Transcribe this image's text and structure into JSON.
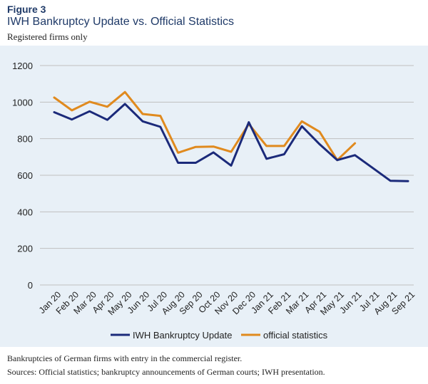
{
  "figure": {
    "label": "Figure 3",
    "title": "IWH Bankruptcy Update vs. Official Statistics",
    "subtitle": "Registered firms only"
  },
  "footer": {
    "note": "Bankruptcies of German firms with entry in the commercial register.",
    "sources": "Sources: Official statistics; bankruptcy announcements of German courts; IWH presentation."
  },
  "colors": {
    "iwh": "#1b2a7a",
    "official": "#e08a1e",
    "panel": "#e8f0f7",
    "grid": "#bfbfbf"
  },
  "chart_data": {
    "type": "line",
    "categories": [
      "Jan 20",
      "Feb 20",
      "Mar 20",
      "Apr 20",
      "May 20",
      "Jun 20",
      "Jul 20",
      "Aug 20",
      "Sep 20",
      "Oct 20",
      "Nov 20",
      "Dec 20",
      "Jan 21",
      "Feb 21",
      "Mar 21",
      "Apr 21",
      "May 21",
      "Jun 21",
      "Jul 21",
      "Aug 21",
      "Sep 21"
    ],
    "yticks": [
      0,
      200,
      400,
      600,
      800,
      1000,
      1200
    ],
    "ylim": [
      0,
      1200
    ],
    "grid": true,
    "legend_position": "bottom",
    "series": [
      {
        "name": "IWH Bankruptcy Update",
        "color": "#1b2a7a",
        "values": [
          945,
          905,
          950,
          903,
          990,
          895,
          865,
          668,
          668,
          725,
          653,
          890,
          690,
          715,
          868,
          770,
          683,
          710,
          640,
          570,
          568
        ]
      },
      {
        "name": "official statistics",
        "color": "#e08a1e",
        "values": [
          1025,
          955,
          1002,
          975,
          1055,
          935,
          925,
          723,
          755,
          757,
          728,
          880,
          760,
          760,
          895,
          838,
          683,
          775,
          null,
          null,
          null
        ]
      }
    ]
  }
}
